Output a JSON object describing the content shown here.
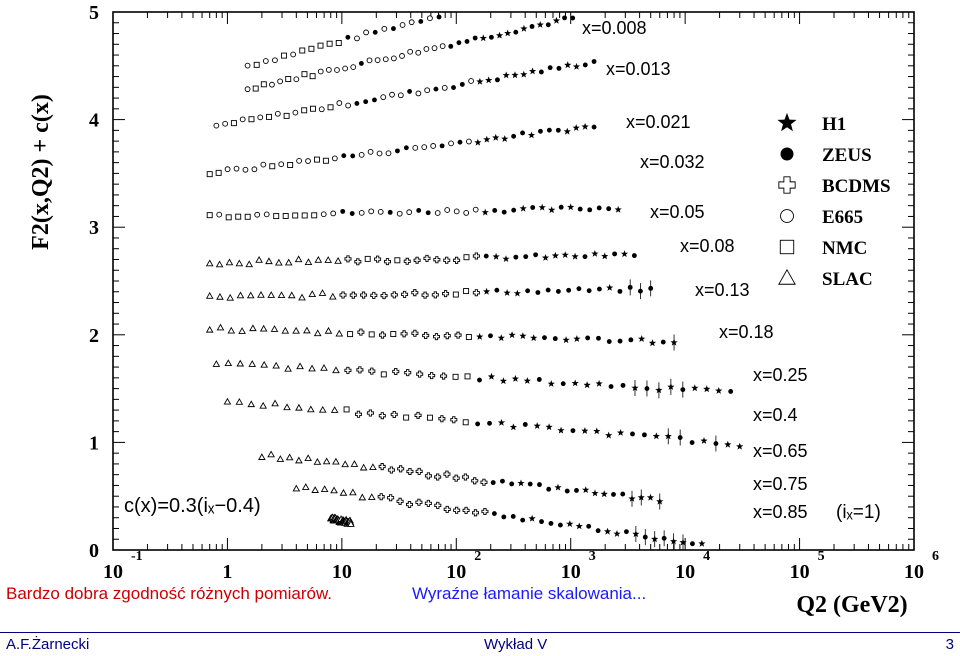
{
  "chart_data": {
    "type": "scatter",
    "title": "",
    "ylabel": "F2(x,Q2) + c(x)",
    "xlabel": "Q2 (GeV2)",
    "x_scale": "log",
    "xlim": [
      0.1,
      1000000
    ],
    "ylim": [
      0,
      5
    ],
    "y_ticks": [
      "0",
      "1",
      "2",
      "3",
      "4",
      "5"
    ],
    "x_ticks": [
      {
        "base": "10",
        "exp": "-1"
      },
      {
        "base": "1",
        "exp": ""
      },
      {
        "base": "10",
        "exp": ""
      },
      {
        "base": "10",
        "exp": "2"
      },
      {
        "base": "10",
        "exp": "3"
      },
      {
        "base": "10",
        "exp": "4"
      },
      {
        "base": "10",
        "exp": "5"
      },
      {
        "base": "10",
        "exp": "6"
      }
    ],
    "offset_formula": "c(x)=0.3(iₓ−0.4)",
    "bins": [
      {
        "label": "x=0.008",
        "base": 4.67
      },
      {
        "label": "x=0.013",
        "base": 4.43
      },
      {
        "label": "x=0.021",
        "base": 4.05
      },
      {
        "label": "x=0.032",
        "base": 3.58
      },
      {
        "label": "x=0.05",
        "base": 3.12
      },
      {
        "label": "x=0.08",
        "base": 2.68
      },
      {
        "label": "x=0.13",
        "base": 2.36
      },
      {
        "label": "x=0.18",
        "base": 2.04
      },
      {
        "label": "x=0.25",
        "base": 1.7
      },
      {
        "label": "x=0.4",
        "base": 1.33
      },
      {
        "label": "x=0.65",
        "base": 0.81
      },
      {
        "label": "x=0.75",
        "base": 0.5
      },
      {
        "label": "x=0.85",
        "base": 0.18
      }
    ],
    "last_bin_note": "(iₓ=1)",
    "legend": {
      "placement": "right",
      "entries": [
        {
          "name": "H1",
          "marker": "star"
        },
        {
          "name": "ZEUS",
          "marker": "filled-circle"
        },
        {
          "name": "BCDMS",
          "marker": "cross"
        },
        {
          "name": "E665",
          "marker": "open-circle"
        },
        {
          "name": "NMC",
          "marker": "open-square"
        },
        {
          "name": "SLAC",
          "marker": "open-triangle"
        }
      ]
    }
  },
  "caption": {
    "left": "Bardzo dobra zgodność różnych pomiarów.",
    "right": "Wyraźne łamanie skalowania..."
  },
  "footer": {
    "author": "A.F.Żarnecki",
    "lecture": "Wykład V",
    "page": "3"
  }
}
